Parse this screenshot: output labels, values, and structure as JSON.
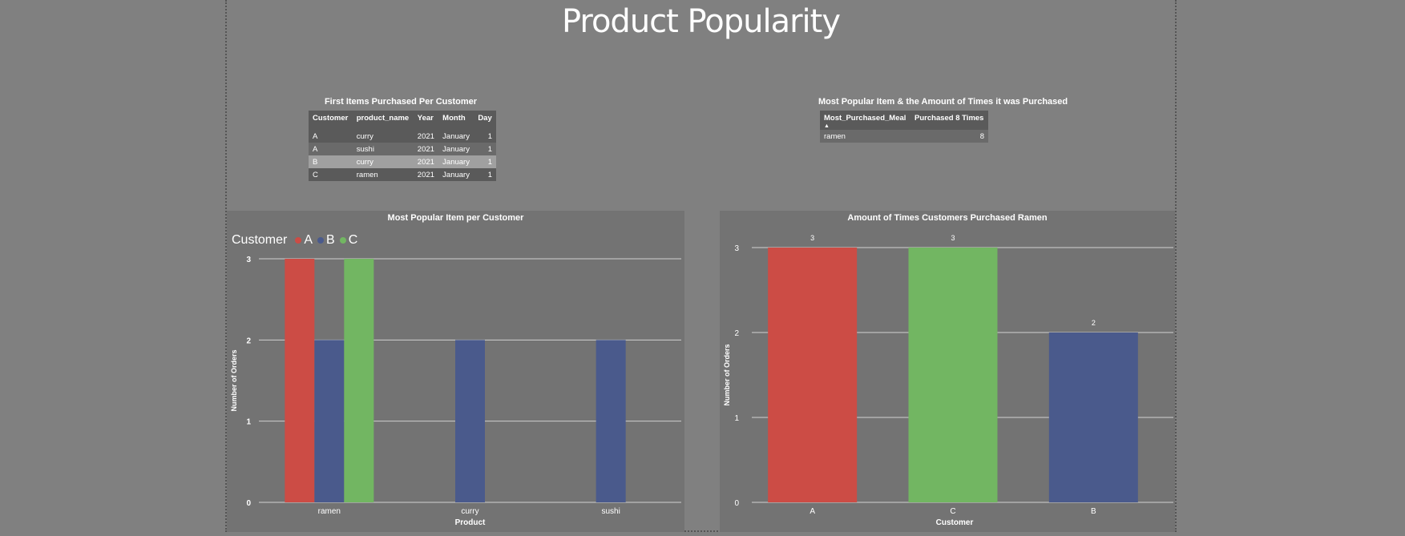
{
  "page": {
    "title": "Product Popularity"
  },
  "first_items": {
    "title": "First Items Purchased Per Customer",
    "columns": [
      "Customer",
      "product_name",
      "Year",
      "Month",
      "Day"
    ],
    "rows": [
      [
        "A",
        "curry",
        "2021",
        "January",
        "1"
      ],
      [
        "A",
        "sushi",
        "2021",
        "January",
        "1"
      ],
      [
        "B",
        "curry",
        "2021",
        "January",
        "1"
      ],
      [
        "C",
        "ramen",
        "2021",
        "January",
        "1"
      ]
    ]
  },
  "most_popular": {
    "title": "Most Popular Item & the Amount of Times it was Purchased",
    "columns": [
      "Most_Purchased_Meal",
      "Purchased 8 Times"
    ],
    "rows": [
      [
        "ramen",
        "8"
      ]
    ]
  },
  "chart_data": [
    {
      "type": "bar",
      "title": "Most Popular Item per Customer",
      "xlabel": "Product",
      "ylabel": "Number of Orders",
      "legend_title": "Customer",
      "legend_position": "top-left",
      "categories": [
        "ramen",
        "curry",
        "sushi"
      ],
      "series": [
        {
          "name": "A",
          "color": "#cc4c45",
          "values": [
            3,
            null,
            null
          ]
        },
        {
          "name": "B",
          "color": "#4a5a8c",
          "values": [
            2,
            2,
            2
          ]
        },
        {
          "name": "C",
          "color": "#72b662",
          "values": [
            3,
            null,
            null
          ]
        }
      ],
      "ylim": [
        0,
        3
      ],
      "yticks": [
        0,
        1,
        2,
        3
      ],
      "grid": true
    },
    {
      "type": "bar",
      "title": "Amount of Times Customers Purchased Ramen",
      "xlabel": "Customer",
      "ylabel": "Number of Orders",
      "categories": [
        "A",
        "C",
        "B"
      ],
      "values": [
        3,
        3,
        2
      ],
      "colors": [
        "#cc4c45",
        "#72b662",
        "#4a5a8c"
      ],
      "data_labels": [
        "3",
        "3",
        "2"
      ],
      "ylim": [
        0,
        3
      ],
      "yticks": [
        0,
        1,
        2,
        3
      ],
      "grid": true
    }
  ]
}
